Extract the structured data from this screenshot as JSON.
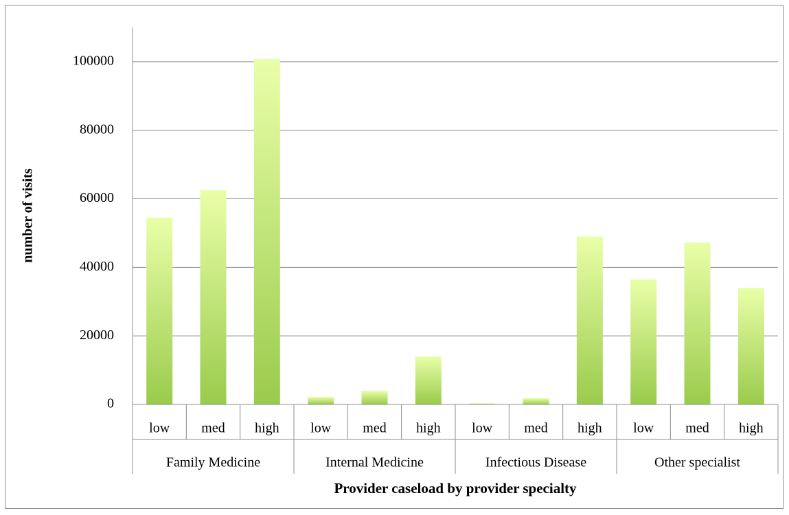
{
  "chart_data": {
    "type": "bar",
    "categories": [
      "low",
      "med",
      "high",
      "low",
      "med",
      "high",
      "low",
      "med",
      "high",
      "low",
      "med",
      "high"
    ],
    "groups": [
      "Family Medicine",
      "Internal Medicine",
      "Infectious Disease",
      "Other specialist"
    ],
    "values": [
      54500,
      62500,
      100800,
      2200,
      4000,
      14000,
      300,
      1800,
      49000,
      36500,
      47200,
      34000
    ],
    "gradient": [
      "#e9ffa8",
      "#9acb4c"
    ],
    "ylim": [
      0,
      110000
    ],
    "yticks": [
      0,
      20000,
      40000,
      60000,
      80000,
      100000
    ],
    "grid": true,
    "y_label": "number of visits",
    "x_label": "Provider caseload by provider specialty"
  }
}
